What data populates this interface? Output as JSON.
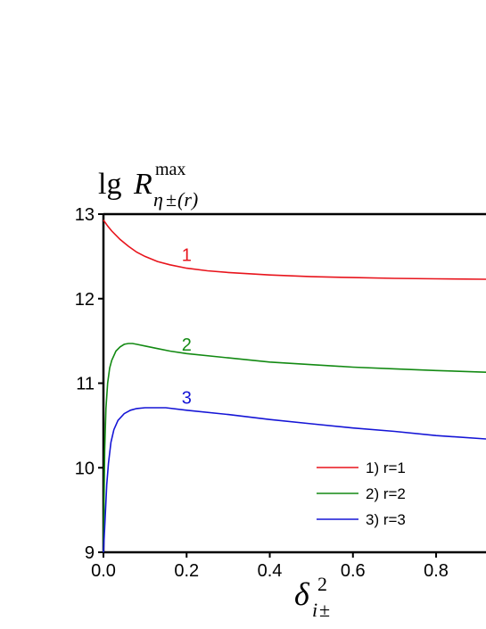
{
  "chart_data": {
    "type": "line",
    "title": "",
    "ylabel": {
      "prefix": "lg",
      "symbol": "R",
      "superscript": "max",
      "subscript_greek": "η",
      "subscript_pm": "±",
      "subscript_paren": "(r)"
    },
    "xlabel": {
      "symbol": "δ",
      "superscript": "2",
      "subscript_i": "i",
      "subscript_pm": "±"
    },
    "xlim": [
      0,
      0.92
    ],
    "ylim": [
      9,
      13
    ],
    "x_ticks": [
      "0.0",
      "0.2",
      "0.4",
      "0.6",
      "0.8"
    ],
    "y_ticks": [
      "9",
      "10",
      "11",
      "12",
      "13"
    ],
    "grid": false,
    "legend_position": "bottom-right",
    "series": [
      {
        "name": "1) r=1",
        "label": "1",
        "color": "#e8141c",
        "x": [
          0,
          0.01,
          0.02,
          0.04,
          0.06,
          0.08,
          0.1,
          0.13,
          0.16,
          0.2,
          0.25,
          0.3,
          0.4,
          0.5,
          0.6,
          0.7,
          0.8,
          0.92
        ],
        "y": [
          12.93,
          12.86,
          12.8,
          12.7,
          12.62,
          12.55,
          12.5,
          12.44,
          12.4,
          12.36,
          12.33,
          12.31,
          12.28,
          12.26,
          12.25,
          12.24,
          12.235,
          12.23
        ]
      },
      {
        "name": "2) r=2",
        "label": "2",
        "color": "#138a13",
        "x": [
          0,
          0.003,
          0.006,
          0.01,
          0.015,
          0.02,
          0.03,
          0.04,
          0.05,
          0.06,
          0.07,
          0.08,
          0.1,
          0.13,
          0.16,
          0.2,
          0.3,
          0.4,
          0.5,
          0.6,
          0.7,
          0.8,
          0.92
        ],
        "y": [
          9.0,
          10.2,
          10.7,
          11.0,
          11.18,
          11.27,
          11.38,
          11.43,
          11.46,
          11.47,
          11.47,
          11.46,
          11.44,
          11.41,
          11.38,
          11.35,
          11.3,
          11.25,
          11.22,
          11.19,
          11.17,
          11.15,
          11.13
        ]
      },
      {
        "name": "3) r=3",
        "label": "3",
        "color": "#1515d6",
        "x": [
          0,
          0.004,
          0.008,
          0.012,
          0.018,
          0.025,
          0.035,
          0.05,
          0.065,
          0.08,
          0.1,
          0.12,
          0.15,
          0.2,
          0.3,
          0.4,
          0.5,
          0.6,
          0.7,
          0.8,
          0.92
        ],
        "y": [
          9.0,
          9.4,
          9.8,
          10.05,
          10.3,
          10.45,
          10.56,
          10.64,
          10.68,
          10.7,
          10.71,
          10.71,
          10.71,
          10.68,
          10.63,
          10.57,
          10.52,
          10.47,
          10.43,
          10.38,
          10.34
        ]
      }
    ],
    "curve_label_positions": [
      {
        "x": 0.2,
        "y": 12.52
      },
      {
        "x": 0.2,
        "y": 11.46
      },
      {
        "x": 0.2,
        "y": 10.83
      }
    ]
  }
}
